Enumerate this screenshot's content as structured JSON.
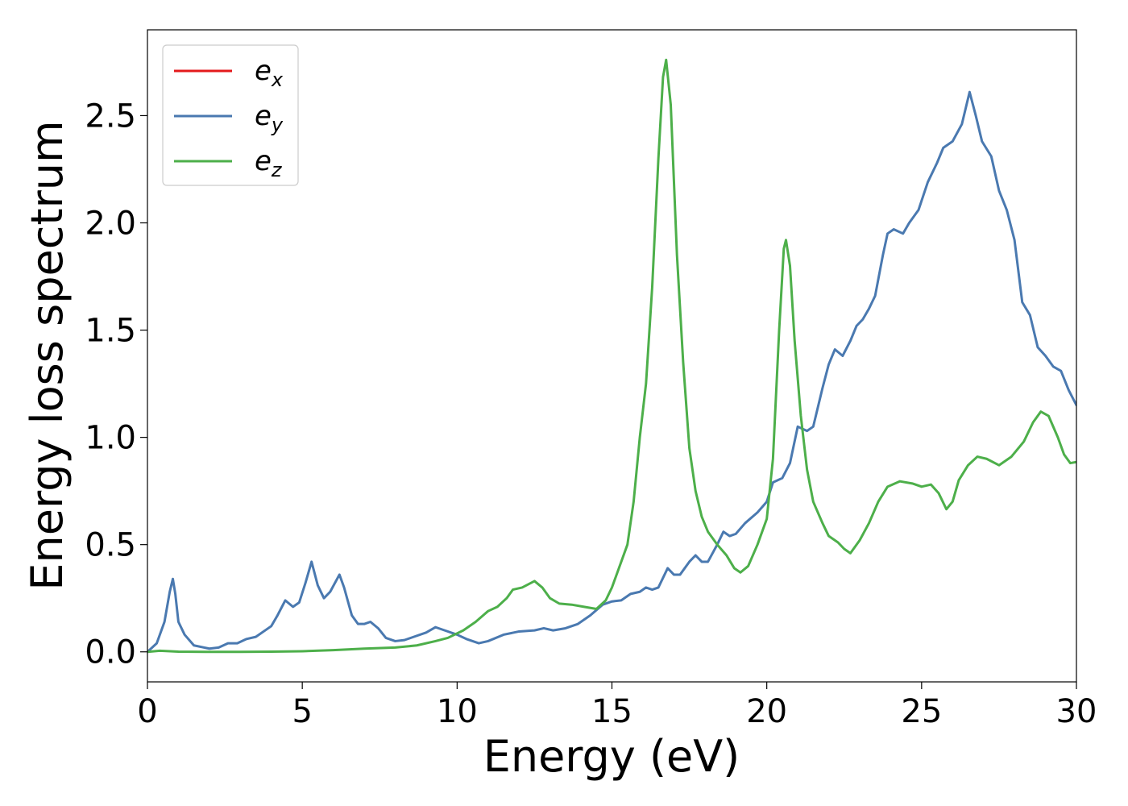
{
  "chart_data": {
    "type": "line",
    "title": "",
    "xlabel": "Energy (eV)",
    "ylabel": "Energy loss spectrum",
    "xlim": [
      0,
      30
    ],
    "ylim": [
      -0.14,
      2.9
    ],
    "xticks": [
      0,
      5,
      10,
      15,
      20,
      25,
      30
    ],
    "xtick_labels": [
      "0",
      "5",
      "10",
      "15",
      "20",
      "25",
      "30"
    ],
    "yticks": [
      0.0,
      0.5,
      1.0,
      1.5,
      2.0,
      2.5
    ],
    "ytick_labels": [
      "0.0",
      "0.5",
      "1.0",
      "1.5",
      "2.0",
      "2.5"
    ],
    "grid": false,
    "legend_position": "top-left",
    "series": [
      {
        "name": "e",
        "sub": "x",
        "color": "#e41a1c",
        "points": []
      },
      {
        "name": "e",
        "sub": "y",
        "color": "#4a79b0",
        "points": [
          [
            0,
            0.0
          ],
          [
            0.3,
            0.04
          ],
          [
            0.55,
            0.14
          ],
          [
            0.72,
            0.28
          ],
          [
            0.82,
            0.34
          ],
          [
            0.9,
            0.27
          ],
          [
            1.0,
            0.14
          ],
          [
            1.2,
            0.08
          ],
          [
            1.5,
            0.03
          ],
          [
            2.0,
            0.015
          ],
          [
            2.3,
            0.02
          ],
          [
            2.6,
            0.04
          ],
          [
            2.9,
            0.04
          ],
          [
            3.2,
            0.06
          ],
          [
            3.5,
            0.07
          ],
          [
            4.0,
            0.12
          ],
          [
            4.2,
            0.17
          ],
          [
            4.45,
            0.24
          ],
          [
            4.7,
            0.21
          ],
          [
            4.9,
            0.23
          ],
          [
            5.1,
            0.32
          ],
          [
            5.3,
            0.42
          ],
          [
            5.5,
            0.31
          ],
          [
            5.7,
            0.25
          ],
          [
            5.9,
            0.28
          ],
          [
            6.2,
            0.36
          ],
          [
            6.35,
            0.3
          ],
          [
            6.6,
            0.17
          ],
          [
            6.8,
            0.13
          ],
          [
            7.0,
            0.13
          ],
          [
            7.2,
            0.14
          ],
          [
            7.45,
            0.11
          ],
          [
            7.7,
            0.065
          ],
          [
            8.0,
            0.05
          ],
          [
            8.3,
            0.055
          ],
          [
            8.6,
            0.07
          ],
          [
            9.0,
            0.09
          ],
          [
            9.3,
            0.115
          ],
          [
            9.6,
            0.1
          ],
          [
            10.0,
            0.08
          ],
          [
            10.3,
            0.06
          ],
          [
            10.7,
            0.04
          ],
          [
            11.0,
            0.05
          ],
          [
            11.5,
            0.08
          ],
          [
            12.0,
            0.095
          ],
          [
            12.5,
            0.1
          ],
          [
            12.8,
            0.11
          ],
          [
            13.1,
            0.1
          ],
          [
            13.5,
            0.11
          ],
          [
            13.9,
            0.13
          ],
          [
            14.3,
            0.17
          ],
          [
            14.7,
            0.22
          ],
          [
            15.0,
            0.235
          ],
          [
            15.3,
            0.24
          ],
          [
            15.6,
            0.27
          ],
          [
            15.9,
            0.28
          ],
          [
            16.1,
            0.3
          ],
          [
            16.3,
            0.29
          ],
          [
            16.5,
            0.3
          ],
          [
            16.8,
            0.39
          ],
          [
            17.0,
            0.36
          ],
          [
            17.2,
            0.36
          ],
          [
            17.5,
            0.42
          ],
          [
            17.7,
            0.45
          ],
          [
            17.9,
            0.42
          ],
          [
            18.1,
            0.42
          ],
          [
            18.4,
            0.5
          ],
          [
            18.6,
            0.56
          ],
          [
            18.8,
            0.54
          ],
          [
            19.0,
            0.55
          ],
          [
            19.3,
            0.6
          ],
          [
            19.7,
            0.65
          ],
          [
            20.0,
            0.7
          ],
          [
            20.2,
            0.79
          ],
          [
            20.5,
            0.81
          ],
          [
            20.75,
            0.88
          ],
          [
            21.0,
            1.05
          ],
          [
            21.3,
            1.03
          ],
          [
            21.5,
            1.05
          ],
          [
            21.8,
            1.23
          ],
          [
            22.0,
            1.34
          ],
          [
            22.2,
            1.41
          ],
          [
            22.45,
            1.38
          ],
          [
            22.7,
            1.45
          ],
          [
            22.9,
            1.52
          ],
          [
            23.1,
            1.55
          ],
          [
            23.3,
            1.6
          ],
          [
            23.5,
            1.66
          ],
          [
            23.75,
            1.85
          ],
          [
            23.9,
            1.95
          ],
          [
            24.1,
            1.97
          ],
          [
            24.4,
            1.95
          ],
          [
            24.6,
            2.0
          ],
          [
            24.9,
            2.06
          ],
          [
            25.2,
            2.19
          ],
          [
            25.5,
            2.28
          ],
          [
            25.7,
            2.35
          ],
          [
            26.0,
            2.38
          ],
          [
            26.3,
            2.46
          ],
          [
            26.55,
            2.61
          ],
          [
            26.75,
            2.5
          ],
          [
            26.95,
            2.38
          ],
          [
            27.25,
            2.31
          ],
          [
            27.5,
            2.15
          ],
          [
            27.75,
            2.06
          ],
          [
            28.0,
            1.92
          ],
          [
            28.25,
            1.63
          ],
          [
            28.5,
            1.57
          ],
          [
            28.75,
            1.42
          ],
          [
            29.0,
            1.38
          ],
          [
            29.25,
            1.33
          ],
          [
            29.5,
            1.31
          ],
          [
            29.75,
            1.22
          ],
          [
            30.0,
            1.15
          ]
        ]
      },
      {
        "name": "e",
        "sub": "z",
        "color": "#4daf4a",
        "points": [
          [
            0,
            0.0
          ],
          [
            0.4,
            0.005
          ],
          [
            1.0,
            0.001
          ],
          [
            2.0,
            0.0
          ],
          [
            3.0,
            0.0
          ],
          [
            4.0,
            0.001
          ],
          [
            5.0,
            0.003
          ],
          [
            6.0,
            0.008
          ],
          [
            7.0,
            0.015
          ],
          [
            8.0,
            0.02
          ],
          [
            8.7,
            0.03
          ],
          [
            9.3,
            0.05
          ],
          [
            9.7,
            0.065
          ],
          [
            10.2,
            0.1
          ],
          [
            10.6,
            0.14
          ],
          [
            11.0,
            0.19
          ],
          [
            11.3,
            0.21
          ],
          [
            11.6,
            0.25
          ],
          [
            11.8,
            0.29
          ],
          [
            12.1,
            0.3
          ],
          [
            12.5,
            0.33
          ],
          [
            12.75,
            0.3
          ],
          [
            13.0,
            0.25
          ],
          [
            13.3,
            0.225
          ],
          [
            13.7,
            0.22
          ],
          [
            14.1,
            0.21
          ],
          [
            14.5,
            0.2
          ],
          [
            14.8,
            0.24
          ],
          [
            15.0,
            0.3
          ],
          [
            15.2,
            0.38
          ],
          [
            15.5,
            0.5
          ],
          [
            15.7,
            0.7
          ],
          [
            15.9,
            1.0
          ],
          [
            16.1,
            1.25
          ],
          [
            16.3,
            1.7
          ],
          [
            16.5,
            2.3
          ],
          [
            16.65,
            2.68
          ],
          [
            16.75,
            2.76
          ],
          [
            16.9,
            2.55
          ],
          [
            17.1,
            1.85
          ],
          [
            17.3,
            1.35
          ],
          [
            17.5,
            0.95
          ],
          [
            17.7,
            0.75
          ],
          [
            17.9,
            0.63
          ],
          [
            18.1,
            0.56
          ],
          [
            18.4,
            0.5
          ],
          [
            18.7,
            0.45
          ],
          [
            18.95,
            0.39
          ],
          [
            19.15,
            0.37
          ],
          [
            19.4,
            0.4
          ],
          [
            19.7,
            0.5
          ],
          [
            20.0,
            0.62
          ],
          [
            20.2,
            0.9
          ],
          [
            20.4,
            1.5
          ],
          [
            20.55,
            1.88
          ],
          [
            20.62,
            1.92
          ],
          [
            20.75,
            1.8
          ],
          [
            20.9,
            1.45
          ],
          [
            21.1,
            1.1
          ],
          [
            21.3,
            0.85
          ],
          [
            21.5,
            0.7
          ],
          [
            21.8,
            0.6
          ],
          [
            22.0,
            0.54
          ],
          [
            22.3,
            0.51
          ],
          [
            22.5,
            0.48
          ],
          [
            22.7,
            0.46
          ],
          [
            23.0,
            0.52
          ],
          [
            23.3,
            0.6
          ],
          [
            23.6,
            0.7
          ],
          [
            23.9,
            0.77
          ],
          [
            24.3,
            0.795
          ],
          [
            24.7,
            0.785
          ],
          [
            25.0,
            0.77
          ],
          [
            25.3,
            0.78
          ],
          [
            25.55,
            0.74
          ],
          [
            25.8,
            0.665
          ],
          [
            26.0,
            0.7
          ],
          [
            26.2,
            0.8
          ],
          [
            26.5,
            0.87
          ],
          [
            26.8,
            0.91
          ],
          [
            27.1,
            0.9
          ],
          [
            27.5,
            0.87
          ],
          [
            27.9,
            0.91
          ],
          [
            28.3,
            0.98
          ],
          [
            28.6,
            1.07
          ],
          [
            28.85,
            1.12
          ],
          [
            29.1,
            1.1
          ],
          [
            29.4,
            1.0
          ],
          [
            29.6,
            0.92
          ],
          [
            29.8,
            0.88
          ],
          [
            30.0,
            0.885
          ]
        ]
      }
    ]
  }
}
